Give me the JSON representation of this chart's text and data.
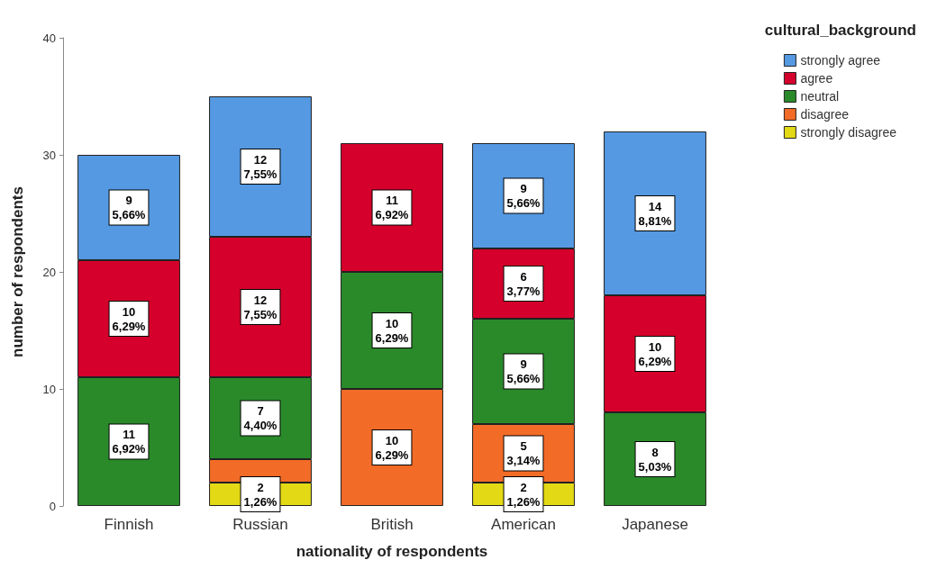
{
  "chart_data": {
    "type": "bar",
    "stacked": true,
    "xlabel": "nationality of respondents",
    "ylabel": "number of respondents",
    "legend_title": "cultural_background",
    "legend": "top right",
    "grid": false,
    "categories": [
      "Finnish",
      "Russian",
      "British",
      "American",
      "Japanese"
    ],
    "ylim": [
      0,
      40
    ],
    "yticks": [
      0,
      10,
      20,
      30,
      40
    ],
    "series": [
      {
        "name": "strongly disagree",
        "color": "#e3d914",
        "values": [
          null,
          2,
          null,
          2,
          null
        ],
        "value_labels": [
          null,
          "2\n1,26%",
          null,
          "2\n1,26%",
          null
        ]
      },
      {
        "name": "disagree",
        "color": "#f26b27",
        "values": [
          null,
          2,
          10,
          5,
          null
        ],
        "value_labels": [
          null,
          null,
          "10\n6,29%",
          "5\n3,14%",
          null
        ]
      },
      {
        "name": "neutral",
        "color": "#2a8a2a",
        "values": [
          11,
          7,
          10,
          9,
          8
        ],
        "value_labels": [
          "11\n6,92%",
          "7\n4,40%",
          "10\n6,29%",
          "9\n5,66%",
          "8\n5,03%"
        ]
      },
      {
        "name": "agree",
        "color": "#d5002b",
        "values": [
          10,
          12,
          11,
          6,
          10
        ],
        "value_labels": [
          "10\n6,29%",
          "12\n7,55%",
          "11\n6,92%",
          "6\n3,77%",
          "10\n6,29%"
        ]
      },
      {
        "name": "strongly agree",
        "color": "#5599e2",
        "values": [
          9,
          12,
          null,
          9,
          14
        ],
        "value_labels": [
          "9\n5,66%",
          "12\n7,55%",
          null,
          "9\n5,66%",
          "14\n8,81%"
        ]
      }
    ]
  }
}
